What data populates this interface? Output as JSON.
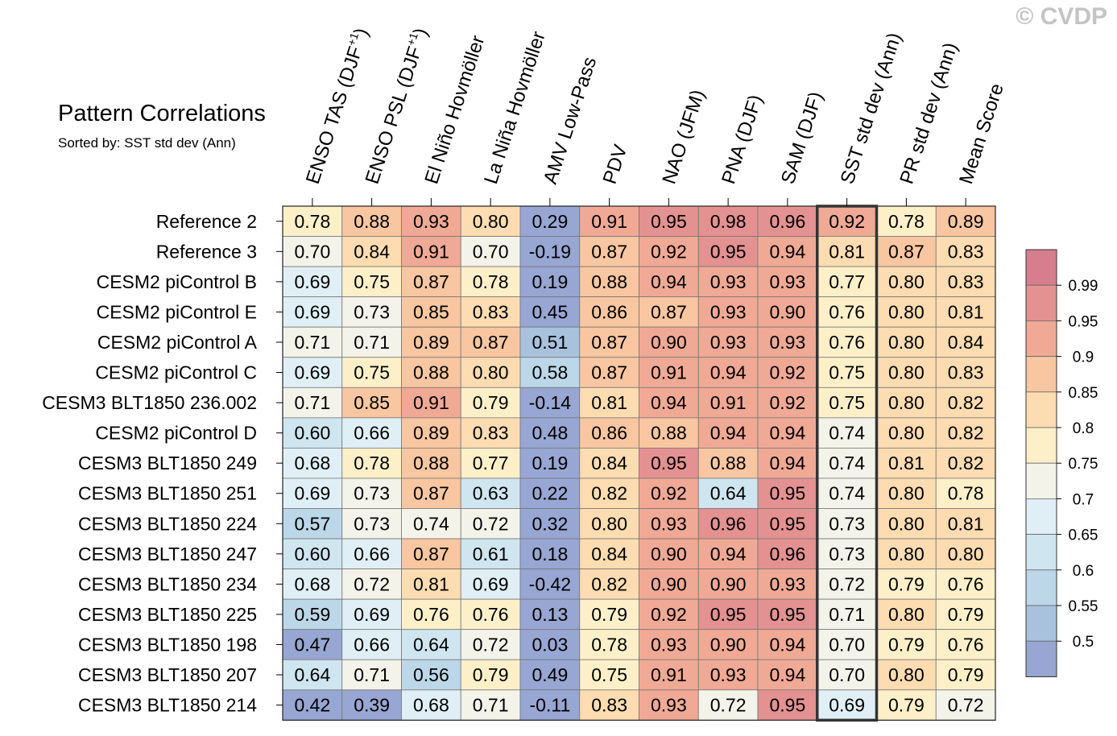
{
  "title": "Pattern Correlations",
  "subtitle": "Sorted by: SST std dev (Ann)",
  "copyright": "© CVDP",
  "chart_data": {
    "type": "heatmap",
    "title": "Pattern Correlations",
    "subtitle": "Sorted by: SST std dev (Ann)",
    "columns": [
      {
        "main": "ENSO TAS (DJF",
        "sup": "+1",
        "tail": ")"
      },
      {
        "main": "ENSO PSL (DJF",
        "sup": "+1",
        "tail": ")"
      },
      {
        "main": "El Niño Hovmöller"
      },
      {
        "main": "La Niña Hovmöller"
      },
      {
        "main": "AMV Low-Pass"
      },
      {
        "main": "PDV"
      },
      {
        "main": "NAO (JFM)"
      },
      {
        "main": "PNA (DJF)"
      },
      {
        "main": "SAM (DJF)"
      },
      {
        "main": "SST std dev (Ann)"
      },
      {
        "main": "PR std dev (Ann)"
      },
      {
        "main": "Mean Score"
      }
    ],
    "highlighted_column": "SST std dev (Ann)",
    "rows": [
      "Reference 2",
      "Reference 3",
      "CESM2 piControl B",
      "CESM2 piControl E",
      "CESM2 piControl A",
      "CESM2 piControl C",
      "CESM3 BLT1850 236.002",
      "CESM2 piControl D",
      "CESM3 BLT1850 249",
      "CESM3 BLT1850 251",
      "CESM3 BLT1850 224",
      "CESM3 BLT1850 247",
      "CESM3 BLT1850 234",
      "CESM3 BLT1850 225",
      "CESM3 BLT1850 198",
      "CESM3 BLT1850 207",
      "CESM3 BLT1850 214"
    ],
    "values": [
      [
        "0.78",
        "0.88",
        "0.93",
        "0.80",
        "0.29",
        "0.91",
        "0.95",
        "0.98",
        "0.96",
        "0.92",
        "0.78",
        "0.89"
      ],
      [
        "0.70",
        "0.84",
        "0.91",
        "0.70",
        "-0.19",
        "0.87",
        "0.92",
        "0.95",
        "0.94",
        "0.81",
        "0.87",
        "0.83"
      ],
      [
        "0.69",
        "0.75",
        "0.87",
        "0.78",
        "0.19",
        "0.88",
        "0.94",
        "0.93",
        "0.93",
        "0.77",
        "0.80",
        "0.83"
      ],
      [
        "0.69",
        "0.73",
        "0.85",
        "0.83",
        "0.45",
        "0.86",
        "0.87",
        "0.93",
        "0.90",
        "0.76",
        "0.80",
        "0.81"
      ],
      [
        "0.71",
        "0.71",
        "0.89",
        "0.87",
        "0.51",
        "0.87",
        "0.90",
        "0.93",
        "0.93",
        "0.76",
        "0.80",
        "0.84"
      ],
      [
        "0.69",
        "0.75",
        "0.88",
        "0.80",
        "0.58",
        "0.87",
        "0.91",
        "0.94",
        "0.92",
        "0.75",
        "0.80",
        "0.83"
      ],
      [
        "0.71",
        "0.85",
        "0.91",
        "0.79",
        "-0.14",
        "0.81",
        "0.94",
        "0.91",
        "0.92",
        "0.75",
        "0.80",
        "0.82"
      ],
      [
        "0.60",
        "0.66",
        "0.89",
        "0.83",
        "0.48",
        "0.86",
        "0.88",
        "0.94",
        "0.94",
        "0.74",
        "0.80",
        "0.82"
      ],
      [
        "0.68",
        "0.78",
        "0.88",
        "0.77",
        "0.19",
        "0.84",
        "0.95",
        "0.88",
        "0.94",
        "0.74",
        "0.81",
        "0.82"
      ],
      [
        "0.69",
        "0.73",
        "0.87",
        "0.63",
        "0.22",
        "0.82",
        "0.92",
        "0.64",
        "0.95",
        "0.74",
        "0.80",
        "0.78"
      ],
      [
        "0.57",
        "0.73",
        "0.74",
        "0.72",
        "0.32",
        "0.80",
        "0.93",
        "0.96",
        "0.95",
        "0.73",
        "0.80",
        "0.81"
      ],
      [
        "0.60",
        "0.66",
        "0.87",
        "0.61",
        "0.18",
        "0.84",
        "0.90",
        "0.94",
        "0.96",
        "0.73",
        "0.80",
        "0.80"
      ],
      [
        "0.68",
        "0.72",
        "0.81",
        "0.69",
        "-0.42",
        "0.82",
        "0.90",
        "0.90",
        "0.93",
        "0.72",
        "0.79",
        "0.76"
      ],
      [
        "0.59",
        "0.69",
        "0.76",
        "0.76",
        "0.13",
        "0.79",
        "0.92",
        "0.95",
        "0.95",
        "0.71",
        "0.80",
        "0.79"
      ],
      [
        "0.47",
        "0.66",
        "0.64",
        "0.72",
        "0.03",
        "0.78",
        "0.93",
        "0.90",
        "0.94",
        "0.70",
        "0.79",
        "0.76"
      ],
      [
        "0.64",
        "0.71",
        "0.56",
        "0.79",
        "0.49",
        "0.75",
        "0.91",
        "0.93",
        "0.94",
        "0.70",
        "0.80",
        "0.79"
      ],
      [
        "0.42",
        "0.39",
        "0.68",
        "0.71",
        "-0.11",
        "0.83",
        "0.93",
        "0.72",
        "0.95",
        "0.69",
        "0.79",
        "0.72"
      ]
    ],
    "colorbar": {
      "labels": [
        "0.99",
        "0.95",
        "0.9",
        "0.85",
        "0.8",
        "0.75",
        "0.7",
        "0.65",
        "0.6",
        "0.55",
        "0.5"
      ],
      "bins": [
        {
          "min": 0.99,
          "color": "#d67d8e"
        },
        {
          "min": 0.95,
          "color": "#e49191"
        },
        {
          "min": 0.9,
          "color": "#f0a995"
        },
        {
          "min": 0.85,
          "color": "#f8c6a0"
        },
        {
          "min": 0.8,
          "color": "#fcdcb0"
        },
        {
          "min": 0.75,
          "color": "#fdf0c9"
        },
        {
          "min": 0.7,
          "color": "#f3f3e9"
        },
        {
          "min": 0.65,
          "color": "#e0eff5"
        },
        {
          "min": 0.6,
          "color": "#cfe5ef"
        },
        {
          "min": 0.55,
          "color": "#bcd7e8"
        },
        {
          "min": 0.5,
          "color": "#a8c2de"
        },
        {
          "min": -1.0,
          "color": "#97a6d2"
        }
      ]
    }
  }
}
